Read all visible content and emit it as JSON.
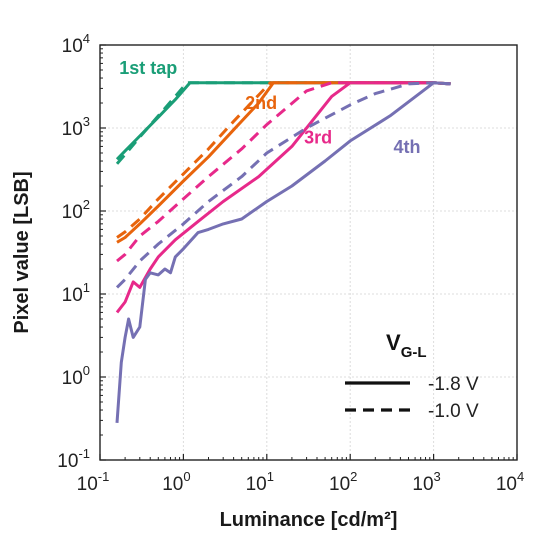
{
  "chart_data": {
    "type": "line",
    "xlabel": "Luminance [cd/m²]",
    "ylabel": "Pixel value [LSB]",
    "xscale": "log",
    "yscale": "log",
    "xlim": [
      0.1,
      10000
    ],
    "ylim": [
      0.1,
      10000
    ],
    "grid": true,
    "x_ticks": [
      {
        "base": "10",
        "exp": "-1",
        "value": 0.1
      },
      {
        "base": "10",
        "exp": "0",
        "value": 1
      },
      {
        "base": "10",
        "exp": "1",
        "value": 10
      },
      {
        "base": "10",
        "exp": "2",
        "value": 100
      },
      {
        "base": "10",
        "exp": "3",
        "value": 1000
      },
      {
        "base": "10",
        "exp": "4",
        "value": 10000
      }
    ],
    "y_ticks": [
      {
        "base": "10",
        "exp": "-1",
        "value": 0.1
      },
      {
        "base": "10",
        "exp": "0",
        "value": 1
      },
      {
        "base": "10",
        "exp": "1",
        "value": 10
      },
      {
        "base": "10",
        "exp": "2",
        "value": 100
      },
      {
        "base": "10",
        "exp": "3",
        "value": 1000
      },
      {
        "base": "10",
        "exp": "4",
        "value": 10000
      }
    ],
    "series_labels": [
      {
        "text": "1st tap",
        "color": "#1a9e77",
        "x": 0.17,
        "y": 4500
      },
      {
        "text": "2nd",
        "color": "#e8640c",
        "x": 5.5,
        "y": 1700
      },
      {
        "text": "3rd",
        "color": "#e7298a",
        "x": 28,
        "y": 650
      },
      {
        "text": "4th",
        "color": "#7570b3",
        "x": 330,
        "y": 500
      }
    ],
    "legend": {
      "title": "V",
      "title_sub": "G-L",
      "placement": "bottom-right",
      "entries": [
        {
          "label": "-1.8 V",
          "style": "solid"
        },
        {
          "label": "-1.0 V",
          "style": "dashed"
        }
      ]
    },
    "series": [
      {
        "tap": "1st tap",
        "bias": "-1.8 V",
        "color": "#1a9e77",
        "style": "solid",
        "x": [
          0.16,
          0.2,
          0.3,
          0.5,
          0.8,
          1.2,
          2,
          10,
          100,
          1000,
          1600
        ],
        "y": [
          420,
          530,
          800,
          1350,
          2200,
          3500,
          3500,
          3500,
          3500,
          3500,
          3400
        ]
      },
      {
        "tap": "1st tap",
        "bias": "-1.0 V",
        "color": "#1a9e77",
        "style": "dashed",
        "x": [
          0.16,
          0.2,
          0.3,
          0.5,
          0.8,
          1.1,
          2,
          10,
          100,
          1000,
          1600
        ],
        "y": [
          370,
          480,
          780,
          1400,
          2400,
          3500,
          3500,
          3500,
          3500,
          3500,
          3400
        ]
      },
      {
        "tap": "2nd",
        "bias": "-1.8 V",
        "color": "#e8640c",
        "style": "solid",
        "x": [
          0.16,
          0.2,
          0.3,
          0.5,
          1,
          2,
          4,
          8,
          12,
          20,
          100,
          1000,
          1600
        ],
        "y": [
          42,
          48,
          70,
          115,
          230,
          450,
          950,
          2000,
          3500,
          3500,
          3500,
          3500,
          3400
        ]
      },
      {
        "tap": "2nd",
        "bias": "-1.0 V",
        "color": "#e8640c",
        "style": "dashed",
        "x": [
          0.16,
          0.2,
          0.3,
          0.5,
          1,
          2,
          4,
          8,
          11,
          20,
          100,
          1000,
          1600
        ],
        "y": [
          48,
          56,
          80,
          140,
          280,
          560,
          1200,
          2500,
          3500,
          3500,
          3500,
          3500,
          3400
        ]
      },
      {
        "tap": "3rd",
        "bias": "-1.8 V",
        "color": "#e7298a",
        "style": "solid",
        "x": [
          0.16,
          0.2,
          0.25,
          0.3,
          0.4,
          0.5,
          0.8,
          1.5,
          3,
          8,
          20,
          60,
          100,
          200,
          1000,
          1600
        ],
        "y": [
          6,
          8,
          14,
          12,
          20,
          28,
          45,
          75,
          130,
          260,
          600,
          2400,
          3500,
          3500,
          3500,
          3400
        ]
      },
      {
        "tap": "3rd",
        "bias": "-1.0 V",
        "color": "#e7298a",
        "style": "dashed",
        "x": [
          0.16,
          0.2,
          0.3,
          0.5,
          1,
          2,
          5,
          10,
          30,
          60,
          100,
          1000,
          1600
        ],
        "y": [
          25,
          30,
          50,
          75,
          140,
          260,
          560,
          1100,
          2800,
          3500,
          3500,
          3500,
          3400
        ]
      },
      {
        "tap": "4th",
        "bias": "-1.8 V",
        "color": "#7570b3",
        "style": "solid",
        "x": [
          0.16,
          0.18,
          0.2,
          0.22,
          0.25,
          0.3,
          0.35,
          0.4,
          0.5,
          0.6,
          0.7,
          0.8,
          1,
          1.5,
          2,
          3,
          5,
          10,
          20,
          50,
          100,
          300,
          1000,
          1600
        ],
        "y": [
          0.28,
          1.5,
          3,
          5,
          3,
          4,
          15,
          18,
          17,
          20,
          18,
          28,
          35,
          55,
          60,
          70,
          80,
          130,
          200,
          400,
          700,
          1400,
          3500,
          3400
        ]
      },
      {
        "tap": "4th",
        "bias": "-1.0 V",
        "color": "#7570b3",
        "style": "dashed",
        "x": [
          0.16,
          0.2,
          0.3,
          0.5,
          1,
          2,
          5,
          10,
          30,
          100,
          200,
          500,
          1000,
          1600
        ],
        "y": [
          12,
          15,
          25,
          40,
          70,
          130,
          260,
          500,
          1000,
          1900,
          2600,
          3400,
          3500,
          3400
        ]
      }
    ]
  }
}
